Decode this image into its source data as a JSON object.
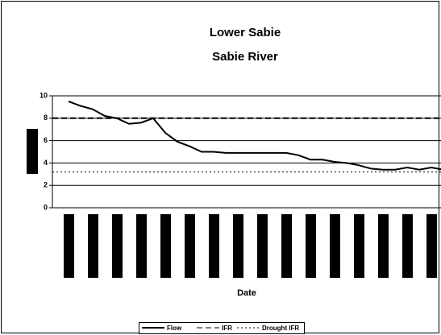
{
  "chart_data": {
    "type": "line",
    "title": [
      "Lower Sabie",
      "Sabie River"
    ],
    "x_label": "Date",
    "categories": [
      null,
      null,
      null,
      null,
      null,
      null,
      null,
      null,
      null,
      null,
      null,
      null,
      null,
      null,
      null,
      null,
      null,
      null,
      null,
      null,
      null,
      null,
      null,
      null,
      null,
      null,
      null,
      null,
      null,
      null,
      null,
      null
    ],
    "series": [
      {
        "name": "Flow",
        "color": "#000000",
        "values": [
          9.5,
          9.1,
          8.8,
          8.2,
          8.0,
          7.5,
          7.6,
          8.0,
          6.7,
          5.9,
          5.5,
          5.0,
          5.0,
          4.9,
          4.9,
          4.9,
          4.9,
          4.9,
          4.9,
          4.7,
          4.3,
          4.3,
          4.1,
          4.0,
          3.8,
          3.5,
          3.4,
          3.4,
          3.6,
          3.4,
          3.6,
          3.4
        ]
      }
    ],
    "reference_lines": [
      {
        "name": "IFR",
        "value": 8,
        "style": "dashed",
        "color": "#000000"
      },
      {
        "name": "Drought IFR",
        "value": 3.2,
        "style": "dotted",
        "color": "#000000"
      }
    ],
    "ylim": [
      0,
      10
    ],
    "yticks": [
      0,
      2,
      4,
      6,
      8,
      10
    ],
    "grid": true
  }
}
